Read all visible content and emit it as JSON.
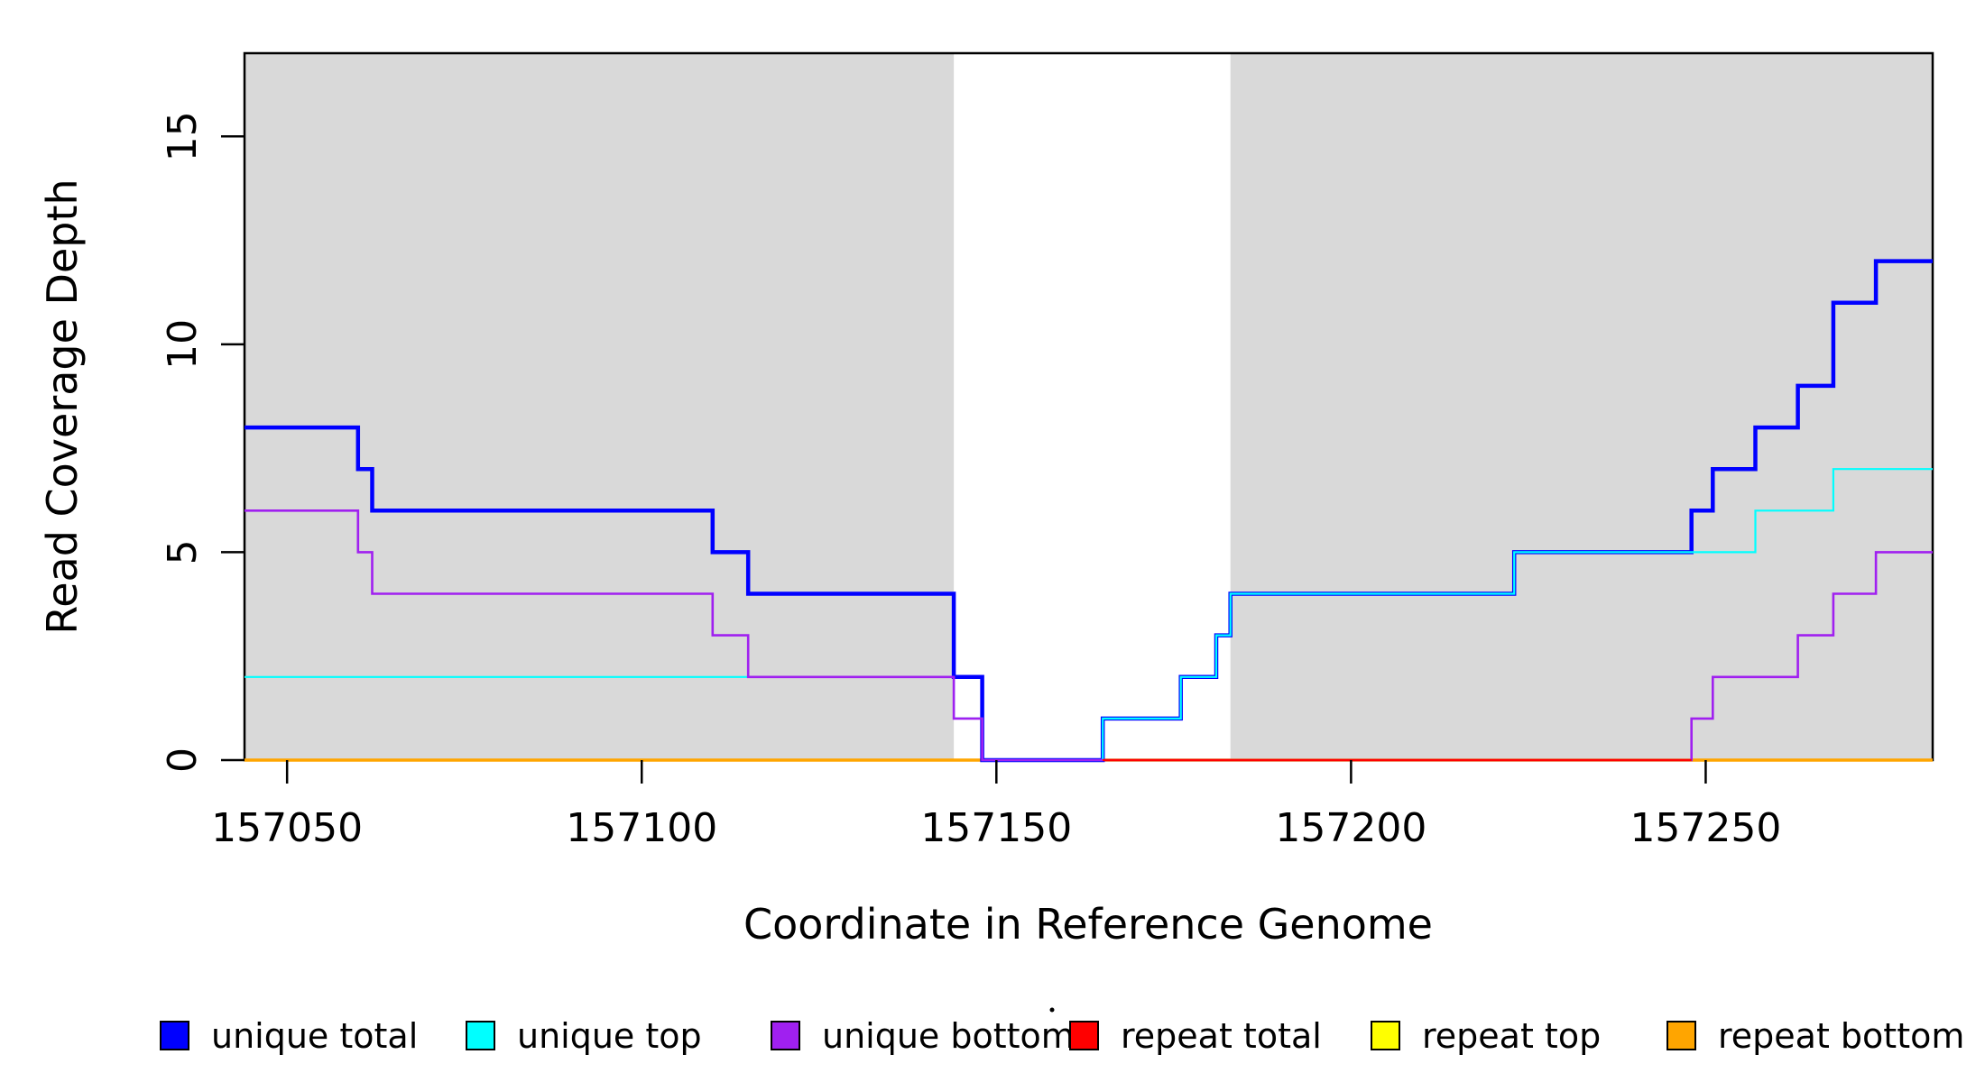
{
  "chart_data": {
    "type": "line",
    "subtype": "step-coverage",
    "title": "",
    "xlabel": "Coordinate in Reference Genome",
    "ylabel": "Read Coverage Depth",
    "xlim": [
      157044,
      157282
    ],
    "ylim": [
      0,
      17
    ],
    "xticks": [
      157050,
      157100,
      157150,
      157200,
      157250
    ],
    "xtick_labels": [
      "157050",
      "157100",
      "157150",
      "157200",
      "157250"
    ],
    "yticks": [
      0,
      5,
      10,
      15
    ],
    "ytick_labels": [
      "0",
      "5",
      "10",
      "15"
    ],
    "grid": false,
    "legend_position": "bottom",
    "shade_color": "#D9D9D9",
    "background_color": "#FFFFFF",
    "box_color": "#000000",
    "shaded_regions": [
      {
        "from": 157044,
        "to": 157144
      },
      {
        "from": 157183,
        "to": 157282
      }
    ],
    "series": [
      {
        "name": "unique total",
        "color": "#0000FF",
        "lw": 4.5,
        "start_value": 8,
        "steps": [
          [
            157060,
            7
          ],
          [
            157062,
            6
          ],
          [
            157110,
            5
          ],
          [
            157115,
            4
          ],
          [
            157144,
            2
          ],
          [
            157148,
            0
          ],
          [
            157165,
            1
          ],
          [
            157176,
            2
          ],
          [
            157181,
            3
          ],
          [
            157183,
            4
          ],
          [
            157223,
            5
          ],
          [
            157248,
            6
          ],
          [
            157251,
            7
          ],
          [
            157257,
            8
          ],
          [
            157263,
            9
          ],
          [
            157268,
            11
          ],
          [
            157274,
            12
          ]
        ]
      },
      {
        "name": "unique top",
        "color": "#00FFFF",
        "lw": 2.2,
        "start_value": 2,
        "steps": [
          [
            157144,
            1
          ],
          [
            157148,
            0
          ],
          [
            157165,
            1
          ],
          [
            157176,
            2
          ],
          [
            157181,
            3
          ],
          [
            157183,
            4
          ],
          [
            157223,
            5
          ],
          [
            157257,
            6
          ],
          [
            157268,
            7
          ]
        ]
      },
      {
        "name": "unique bottom",
        "color": "#A020F0",
        "lw": 2.6,
        "start_value": 6,
        "steps": [
          [
            157060,
            5
          ],
          [
            157062,
            4
          ],
          [
            157110,
            3
          ],
          [
            157115,
            2
          ],
          [
            157144,
            1
          ],
          [
            157148,
            0
          ],
          [
            157248,
            1
          ],
          [
            157251,
            2
          ],
          [
            157263,
            3
          ],
          [
            157268,
            4
          ],
          [
            157274,
            5
          ]
        ]
      },
      {
        "name": "repeat total",
        "color": "#FF0000",
        "lw": 2.2,
        "start_value": 0,
        "steps": [],
        "visible_range": [
          157165,
          157248
        ]
      },
      {
        "name": "repeat top",
        "color": "#FFFF00",
        "lw": 2.2,
        "start_value": 0,
        "steps": []
      },
      {
        "name": "repeat bottom",
        "color": "#FFA500",
        "lw": 3.4,
        "start_value": 0,
        "steps": []
      }
    ],
    "draw_order": [
      "repeat top",
      "repeat bottom",
      "unique total",
      "unique top",
      "unique bottom",
      "repeat total"
    ]
  },
  "legend": {
    "items": [
      {
        "label": "unique total",
        "color": "#0000FF"
      },
      {
        "label": "unique top",
        "color": "#00FFFF"
      },
      {
        "label": "unique bottom",
        "color": "#A020F0"
      },
      {
        "label": "repeat total",
        "color": "#FF0000"
      },
      {
        "label": "repeat top",
        "color": "#FFFF00"
      },
      {
        "label": "repeat bottom",
        "color": "#FFA500"
      }
    ]
  }
}
